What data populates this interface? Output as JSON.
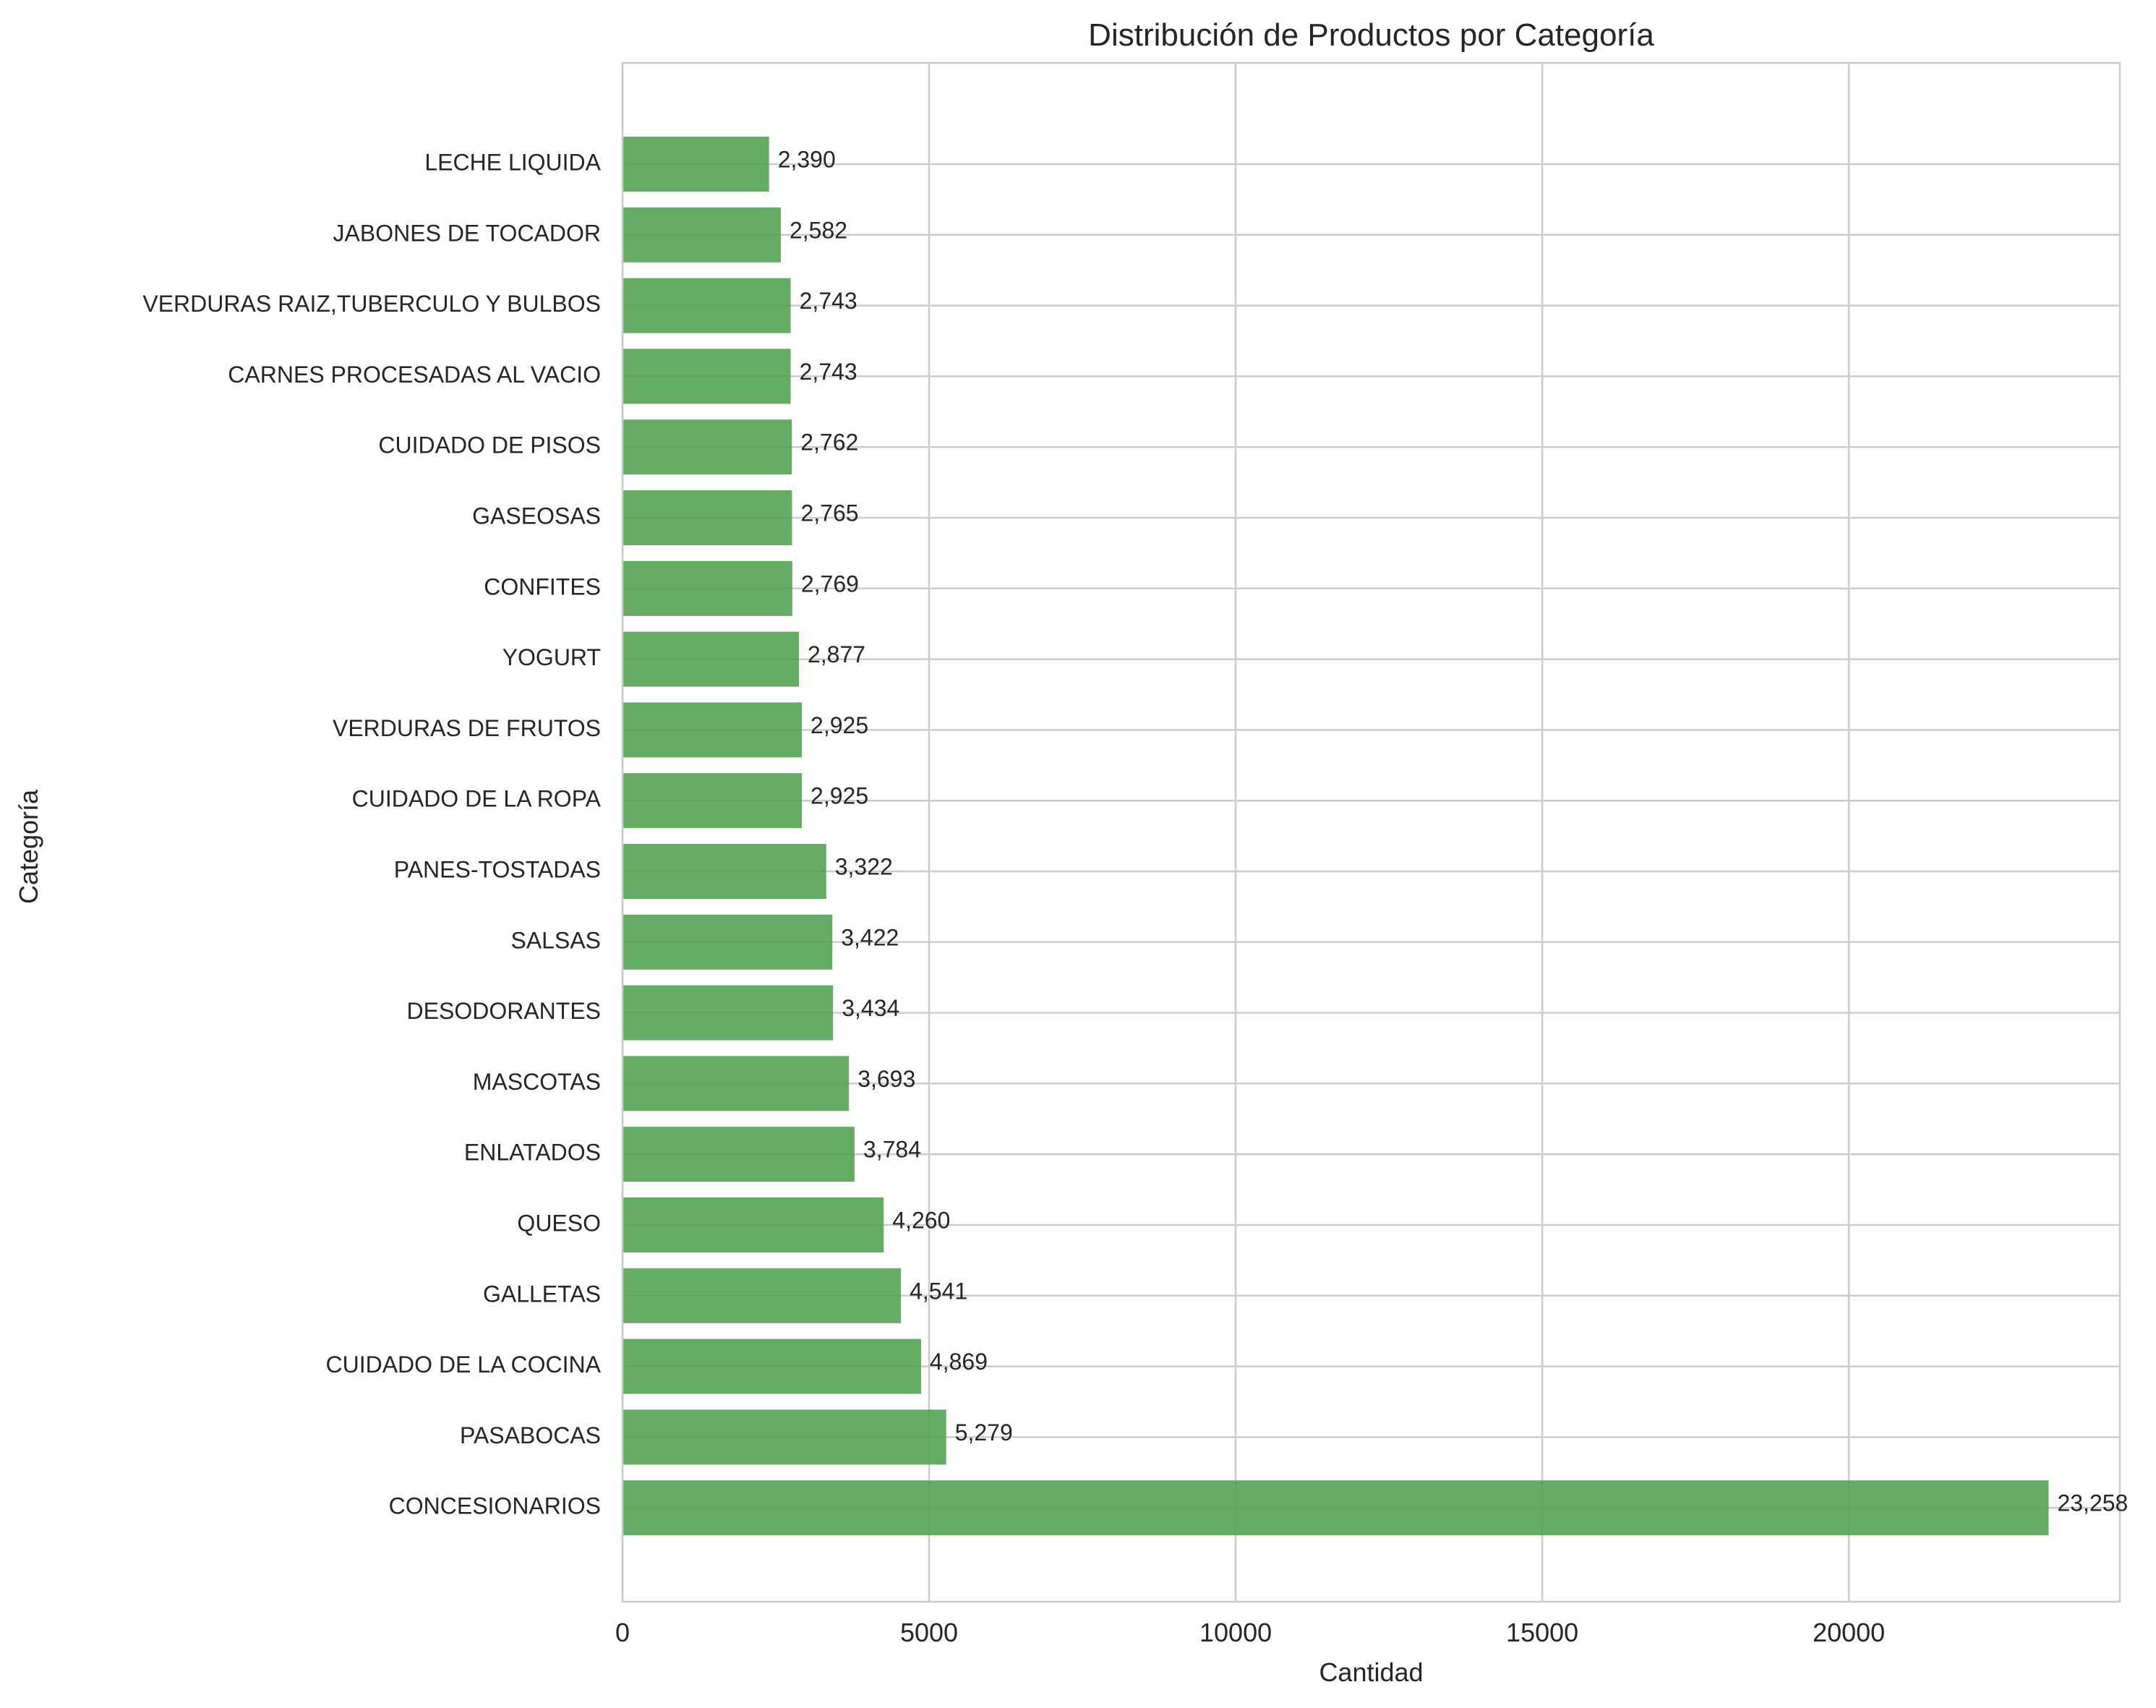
{
  "chart_data": {
    "type": "bar",
    "orientation": "horizontal",
    "title": "Distribución de Productos por Categoría",
    "xlabel": "Cantidad",
    "ylabel": "Categoría",
    "xlim": [
      0,
      24420
    ],
    "xticks": [
      0,
      5000,
      10000,
      15000,
      20000
    ],
    "xtick_labels": [
      "0",
      "5000",
      "10000",
      "15000",
      "20000"
    ],
    "grid": true,
    "bar_color": "#4a9e4a",
    "categories": [
      "LECHE LIQUIDA",
      "JABONES DE TOCADOR",
      "VERDURAS RAIZ,TUBERCULO Y BULBOS",
      "CARNES PROCESADAS AL VACIO",
      "CUIDADO DE PISOS",
      "GASEOSAS",
      "CONFITES",
      "YOGURT",
      "VERDURAS DE FRUTOS",
      "CUIDADO DE LA ROPA",
      "PANES-TOSTADAS",
      "SALSAS",
      "DESODORANTES",
      "MASCOTAS",
      "ENLATADOS",
      "QUESO",
      "GALLETAS",
      "CUIDADO DE LA COCINA",
      "PASABOCAS",
      "CONCESIONARIOS"
    ],
    "values": [
      2390,
      2582,
      2743,
      2743,
      2762,
      2765,
      2769,
      2877,
      2925,
      2925,
      3322,
      3422,
      3434,
      3693,
      3784,
      4260,
      4541,
      4869,
      5279,
      23258
    ],
    "value_labels": [
      "2,390",
      "2,582",
      "2,743",
      "2,743",
      "2,762",
      "2,765",
      "2,769",
      "2,877",
      "2,925",
      "2,925",
      "3,322",
      "3,422",
      "3,434",
      "3,693",
      "3,784",
      "4,260",
      "4,541",
      "4,869",
      "5,279",
      "23,258"
    ]
  }
}
